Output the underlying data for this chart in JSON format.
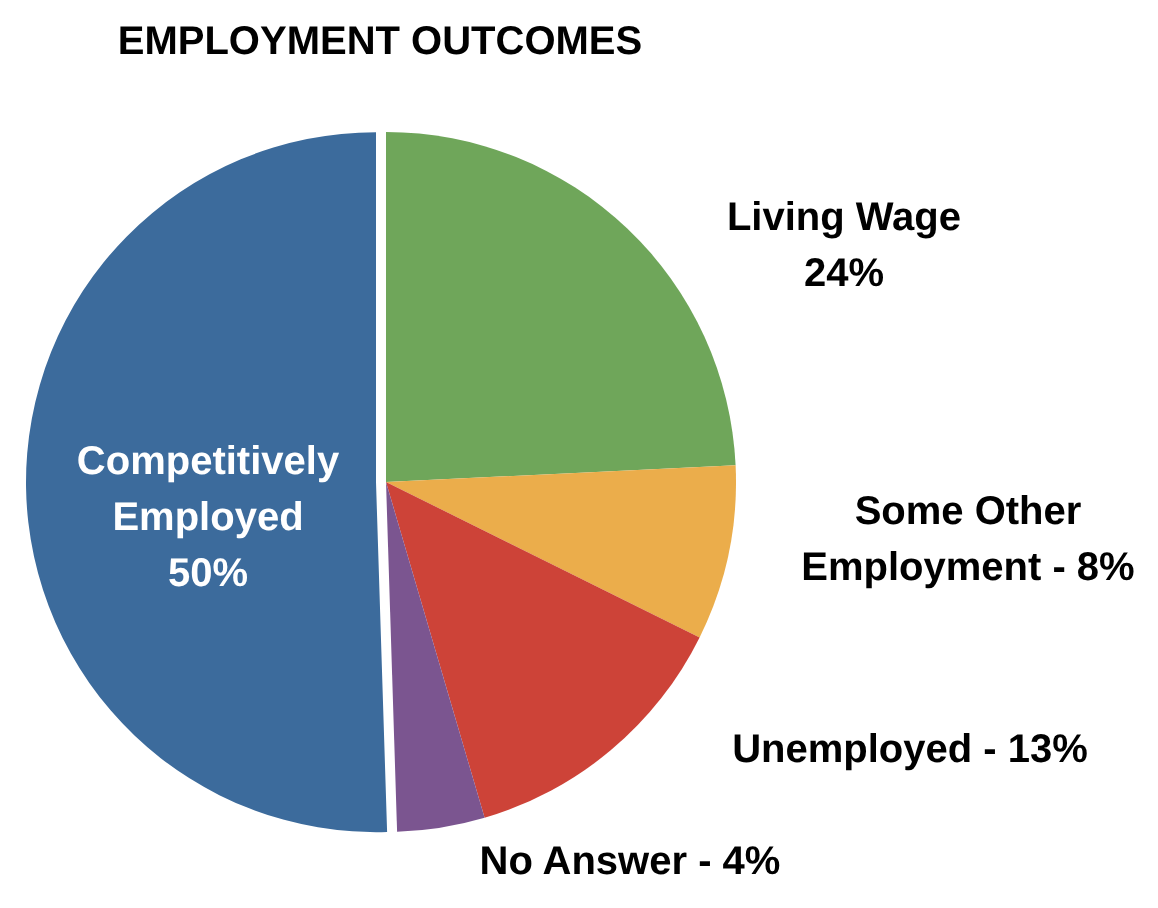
{
  "chart_data": {
    "type": "pie",
    "title": "EMPLOYMENT OUTCOMES",
    "categories": [
      "Living Wage",
      "Some Other Employment",
      "Unemployed",
      "No Answer",
      "Competitively Employed"
    ],
    "values": [
      24,
      8,
      13,
      4,
      50
    ],
    "colors": [
      "#6fa65a",
      "#ebad4b",
      "#cd4338",
      "#7b5590",
      "#3c6b9c"
    ],
    "value_labels": [
      "24%",
      "8%",
      "13%",
      "4%",
      "50%"
    ]
  }
}
